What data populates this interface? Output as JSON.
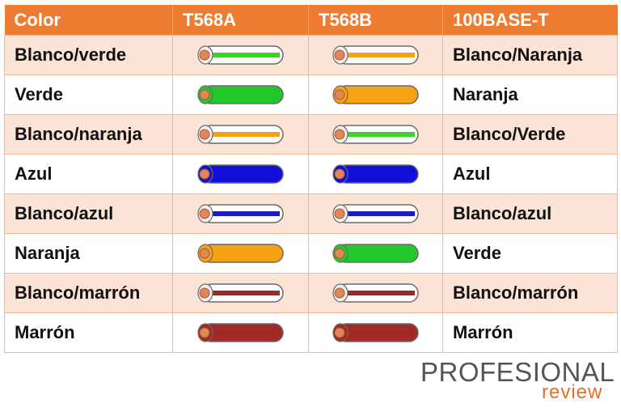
{
  "headers": [
    "Color",
    "T568A",
    "T568B",
    "100BASE-T"
  ],
  "rows": [
    {
      "color": "Blanco/verde",
      "a": {
        "base": "#ffffff",
        "stripe": "#3fcf2a"
      },
      "b": {
        "base": "#ffffff",
        "stripe": "#f5a312"
      },
      "t": "Blanco/Naranja"
    },
    {
      "color": "Verde",
      "a": {
        "base": "#22c82a",
        "stripe": null
      },
      "b": {
        "base": "#f6a313",
        "stripe": null
      },
      "t": "Naranja"
    },
    {
      "color": "Blanco/naranja",
      "a": {
        "base": "#ffffff",
        "stripe": "#f5a312"
      },
      "b": {
        "base": "#ffffff",
        "stripe": "#3fcf2a"
      },
      "t": "Blanco/Verde"
    },
    {
      "color": "Azul",
      "a": {
        "base": "#1010d8",
        "stripe": null
      },
      "b": {
        "base": "#1010d8",
        "stripe": null
      },
      "t": "Azul"
    },
    {
      "color": "Blanco/azul",
      "a": {
        "base": "#ffffff",
        "stripe": "#1818d6"
      },
      "b": {
        "base": "#ffffff",
        "stripe": "#1818d6"
      },
      "t": "Blanco/azul"
    },
    {
      "color": "Naranja",
      "a": {
        "base": "#f6a313",
        "stripe": null
      },
      "b": {
        "base": "#22c82a",
        "stripe": null
      },
      "t": "Verde"
    },
    {
      "color": "Blanco/marrón",
      "a": {
        "base": "#ffffff",
        "stripe": "#9b2a2a"
      },
      "b": {
        "base": "#ffffff",
        "stripe": "#9b2a2a"
      },
      "t": "Blanco/marrón"
    },
    {
      "color": "Marrón",
      "a": {
        "base": "#a12a24",
        "stripe": null
      },
      "b": {
        "base": "#a12a24",
        "stripe": null
      },
      "t": "Marrón"
    }
  ],
  "logo": {
    "line1": "PROFESIONAL",
    "line2": "review"
  }
}
